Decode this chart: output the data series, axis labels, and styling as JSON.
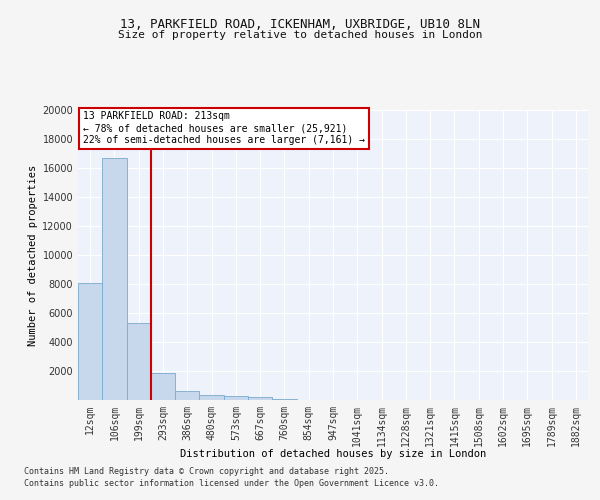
{
  "title1": "13, PARKFIELD ROAD, ICKENHAM, UXBRIDGE, UB10 8LN",
  "title2": "Size of property relative to detached houses in London",
  "xlabel": "Distribution of detached houses by size in London",
  "ylabel": "Number of detached properties",
  "bar_labels": [
    "12sqm",
    "106sqm",
    "199sqm",
    "293sqm",
    "386sqm",
    "480sqm",
    "573sqm",
    "667sqm",
    "760sqm",
    "854sqm",
    "947sqm",
    "1041sqm",
    "1134sqm",
    "1228sqm",
    "1321sqm",
    "1415sqm",
    "1508sqm",
    "1602sqm",
    "1695sqm",
    "1789sqm",
    "1882sqm"
  ],
  "bar_values": [
    8100,
    16700,
    5300,
    1850,
    650,
    350,
    250,
    200,
    50,
    0,
    0,
    0,
    0,
    0,
    0,
    0,
    0,
    0,
    0,
    0,
    0
  ],
  "bar_color": "#c8d8ec",
  "bar_edge_color": "#7aaad0",
  "vline_color": "#cc0000",
  "annotation_title": "13 PARKFIELD ROAD: 213sqm",
  "annotation_line1": "← 78% of detached houses are smaller (25,921)",
  "annotation_line2": "22% of semi-detached houses are larger (7,161) →",
  "annotation_box_color": "#cc0000",
  "ylim": [
    0,
    20000
  ],
  "yticks": [
    0,
    2000,
    4000,
    6000,
    8000,
    10000,
    12000,
    14000,
    16000,
    18000,
    20000
  ],
  "background_color": "#edf2fb",
  "grid_color": "#ffffff",
  "footer1": "Contains HM Land Registry data © Crown copyright and database right 2025.",
  "footer2": "Contains public sector information licensed under the Open Government Licence v3.0.",
  "fig_bg": "#f5f5f5"
}
